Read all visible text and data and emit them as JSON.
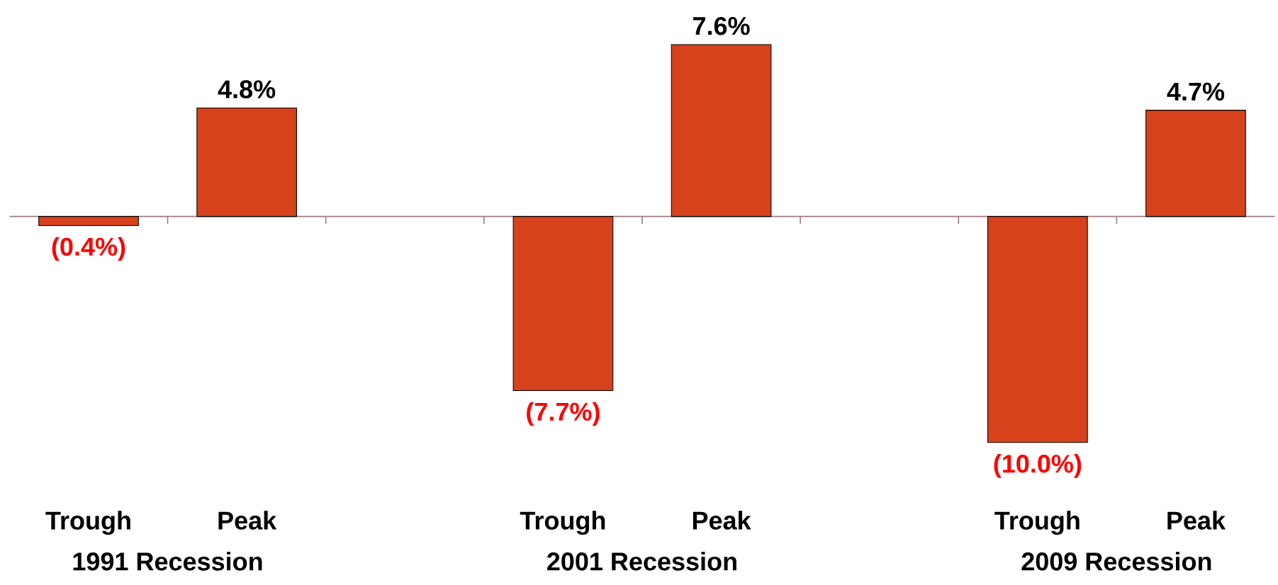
{
  "chart_data": {
    "type": "bar",
    "categories": [
      "Trough",
      "Peak",
      null,
      "Trough",
      "Peak",
      null,
      "Trough",
      "Peak"
    ],
    "values": [
      -0.4,
      4.8,
      null,
      -7.7,
      7.6,
      null,
      -10.0,
      4.7
    ],
    "value_labels": [
      "(0.4%)",
      "4.8%",
      null,
      "(7.7%)",
      "7.6%",
      null,
      "(10.0%)",
      "4.7%"
    ],
    "color": "#d5421b",
    "annotations": [
      "1991 Recession",
      "2001 Recession",
      "2009 Recession"
    ],
    "tick_labels": "x"
  }
}
